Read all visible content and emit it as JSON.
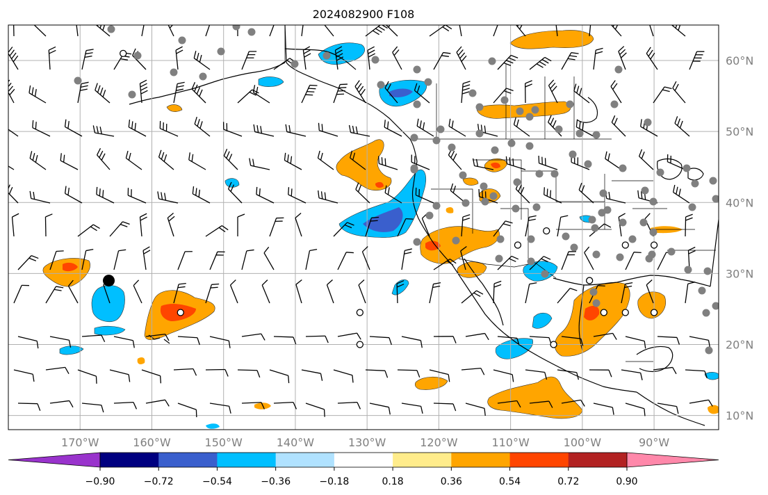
{
  "map": {
    "title": "2024082900 F108",
    "projection": "plate-carree",
    "lon_range": [
      -180,
      -81
    ],
    "lat_range": [
      8,
      65
    ],
    "lat_labels": [
      {
        "text": "60°N",
        "lat": 60
      },
      {
        "text": "50°N",
        "lat": 50
      },
      {
        "text": "40°N",
        "lat": 40
      },
      {
        "text": "30°N",
        "lat": 30
      },
      {
        "text": "20°N",
        "lat": 20
      },
      {
        "text": "10°N",
        "lat": 10
      }
    ],
    "lon_labels": [
      {
        "text": "170°W",
        "lon": -170
      },
      {
        "text": "160°W",
        "lon": -160
      },
      {
        "text": "150°W",
        "lon": -150
      },
      {
        "text": "140°W",
        "lon": -140
      },
      {
        "text": "130°W",
        "lon": -130
      },
      {
        "text": "120°W",
        "lon": -120
      },
      {
        "text": "110°W",
        "lon": -110
      },
      {
        "text": "100°W",
        "lon": -100
      },
      {
        "text": "90°W",
        "lon": -90
      }
    ],
    "grid": true,
    "label_color": "#7f7f7f",
    "gridline_color": "#b0b0b0"
  },
  "colorbar": {
    "orientation": "horizontal",
    "extend": "both",
    "ticks": [
      "−0.90",
      "−0.72",
      "−0.54",
      "−0.36",
      "−0.18",
      "0.18",
      "0.36",
      "0.54",
      "0.72",
      "0.90"
    ],
    "colors": [
      "#9933cc",
      "#000080",
      "#3a5fcd",
      "#00bfff",
      "#b0e2ff",
      "#ffffff",
      "#ffec8b",
      "#ffa500",
      "#ff4500",
      "#b22222",
      "#ff88aa"
    ]
  },
  "anomaly_regions": [
    {
      "sign": "positive",
      "max_level": 0.72,
      "lon": -169,
      "lat": 30
    },
    {
      "sign": "positive",
      "max_level": 0.72,
      "lon": -156,
      "lat": 25
    },
    {
      "sign": "negative",
      "max_level": -0.54,
      "lon": -163,
      "lat": 25
    },
    {
      "sign": "negative",
      "max_level": -0.36,
      "lon": -142,
      "lat": 54
    },
    {
      "sign": "negative",
      "max_level": -0.54,
      "lon": -134,
      "lat": 59
    },
    {
      "sign": "negative",
      "max_level": -0.72,
      "lon": -126,
      "lat": 55
    },
    {
      "sign": "negative",
      "max_level": -0.72,
      "lon": -124,
      "lat": 38
    },
    {
      "sign": "positive",
      "max_level": 0.72,
      "lon": -128,
      "lat": 45
    },
    {
      "sign": "positive",
      "max_level": 0.72,
      "lon": -120,
      "lat": 34
    },
    {
      "sign": "positive",
      "max_level": 0.54,
      "lon": -109,
      "lat": 62
    },
    {
      "sign": "positive",
      "max_level": 0.54,
      "lon": -102,
      "lat": 53
    },
    {
      "sign": "positive",
      "max_level": 0.72,
      "lon": -110,
      "lat": 45
    },
    {
      "sign": "negative",
      "max_level": -0.54,
      "lon": -104,
      "lat": 30
    },
    {
      "sign": "negative",
      "max_level": -0.54,
      "lon": -107,
      "lat": 21
    },
    {
      "sign": "positive",
      "max_level": 0.72,
      "lon": -98,
      "lat": 24
    },
    {
      "sign": "positive",
      "max_level": 0.54,
      "lon": -90,
      "lat": 25
    },
    {
      "sign": "positive",
      "max_level": 0.36,
      "lon": -108,
      "lat": 12
    },
    {
      "sign": "positive",
      "max_level": 0.36,
      "lon": -118,
      "lat": 14
    }
  ],
  "station_markers": {
    "large_black": [
      {
        "lon": -166,
        "lat": 29
      }
    ],
    "open_circles": [
      {
        "lon": -164,
        "lat": 61
      },
      {
        "lon": -156,
        "lat": 24.5
      },
      {
        "lon": -131,
        "lat": 24.5
      },
      {
        "lon": -131,
        "lat": 20
      },
      {
        "lon": -105,
        "lat": 36
      },
      {
        "lon": -109,
        "lat": 34
      },
      {
        "lon": -94,
        "lat": 34
      },
      {
        "lon": -90,
        "lat": 34
      },
      {
        "lon": -99,
        "lat": 29
      },
      {
        "lon": -97,
        "lat": 24.5
      },
      {
        "lon": -94,
        "lat": 24.5
      },
      {
        "lon": -90,
        "lat": 24.5
      },
      {
        "lon": -104,
        "lat": 20
      }
    ]
  }
}
